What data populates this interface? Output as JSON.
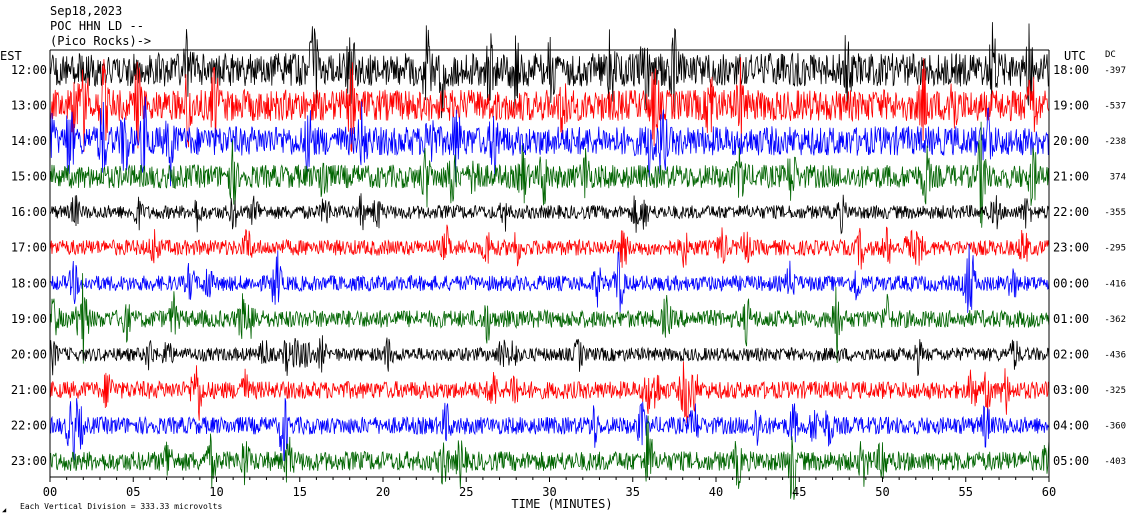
{
  "header": {
    "date": "Sep18,2023",
    "station": "POC HHN LD --",
    "network": "(Pico Rocks)->"
  },
  "chart_data": {
    "type": "line",
    "title": "",
    "left_axis_label": "EST",
    "right_axis_label": "UTC",
    "dc_label": "DC",
    "xlabel": "TIME (MINUTES)",
    "xlim": [
      0,
      60
    ],
    "x_ticks": [
      "00",
      "05",
      "10",
      "15",
      "20",
      "25",
      "30",
      "35",
      "40",
      "45",
      "50",
      "55",
      "60"
    ],
    "x_tick_values": [
      0,
      5,
      10,
      15,
      20,
      25,
      30,
      35,
      40,
      45,
      50,
      55,
      60
    ],
    "footer_note": "Each Vertical Division = 333.33 microvolts",
    "rows": [
      {
        "est": "12:00",
        "utc": "18:00",
        "dc": "-397",
        "color": "#000000",
        "amplitude": 0.85
      },
      {
        "est": "13:00",
        "utc": "19:00",
        "dc": "-537",
        "color": "#ff0000",
        "amplitude": 0.8
      },
      {
        "est": "14:00",
        "utc": "20:00",
        "dc": "-238",
        "color": "#0000ff",
        "amplitude": 0.75
      },
      {
        "est": "15:00",
        "utc": "21:00",
        "dc": "374",
        "color": "#006400",
        "amplitude": 0.6
      },
      {
        "est": "16:00",
        "utc": "22:00",
        "dc": "-355",
        "color": "#000000",
        "amplitude": 0.35
      },
      {
        "est": "17:00",
        "utc": "23:00",
        "dc": "-295",
        "color": "#ff0000",
        "amplitude": 0.4
      },
      {
        "est": "18:00",
        "utc": "00:00",
        "dc": "-416",
        "color": "#0000ff",
        "amplitude": 0.4
      },
      {
        "est": "19:00",
        "utc": "01:00",
        "dc": "-362",
        "color": "#006400",
        "amplitude": 0.45
      },
      {
        "est": "20:00",
        "utc": "02:00",
        "dc": "-436",
        "color": "#000000",
        "amplitude": 0.35
      },
      {
        "est": "21:00",
        "utc": "03:00",
        "dc": "-325",
        "color": "#ff0000",
        "amplitude": 0.45
      },
      {
        "est": "22:00",
        "utc": "04:00",
        "dc": "-360",
        "color": "#0000ff",
        "amplitude": 0.45
      },
      {
        "est": "23:00",
        "utc": "05:00",
        "dc": "-403",
        "color": "#006400",
        "amplitude": 0.5
      }
    ]
  }
}
